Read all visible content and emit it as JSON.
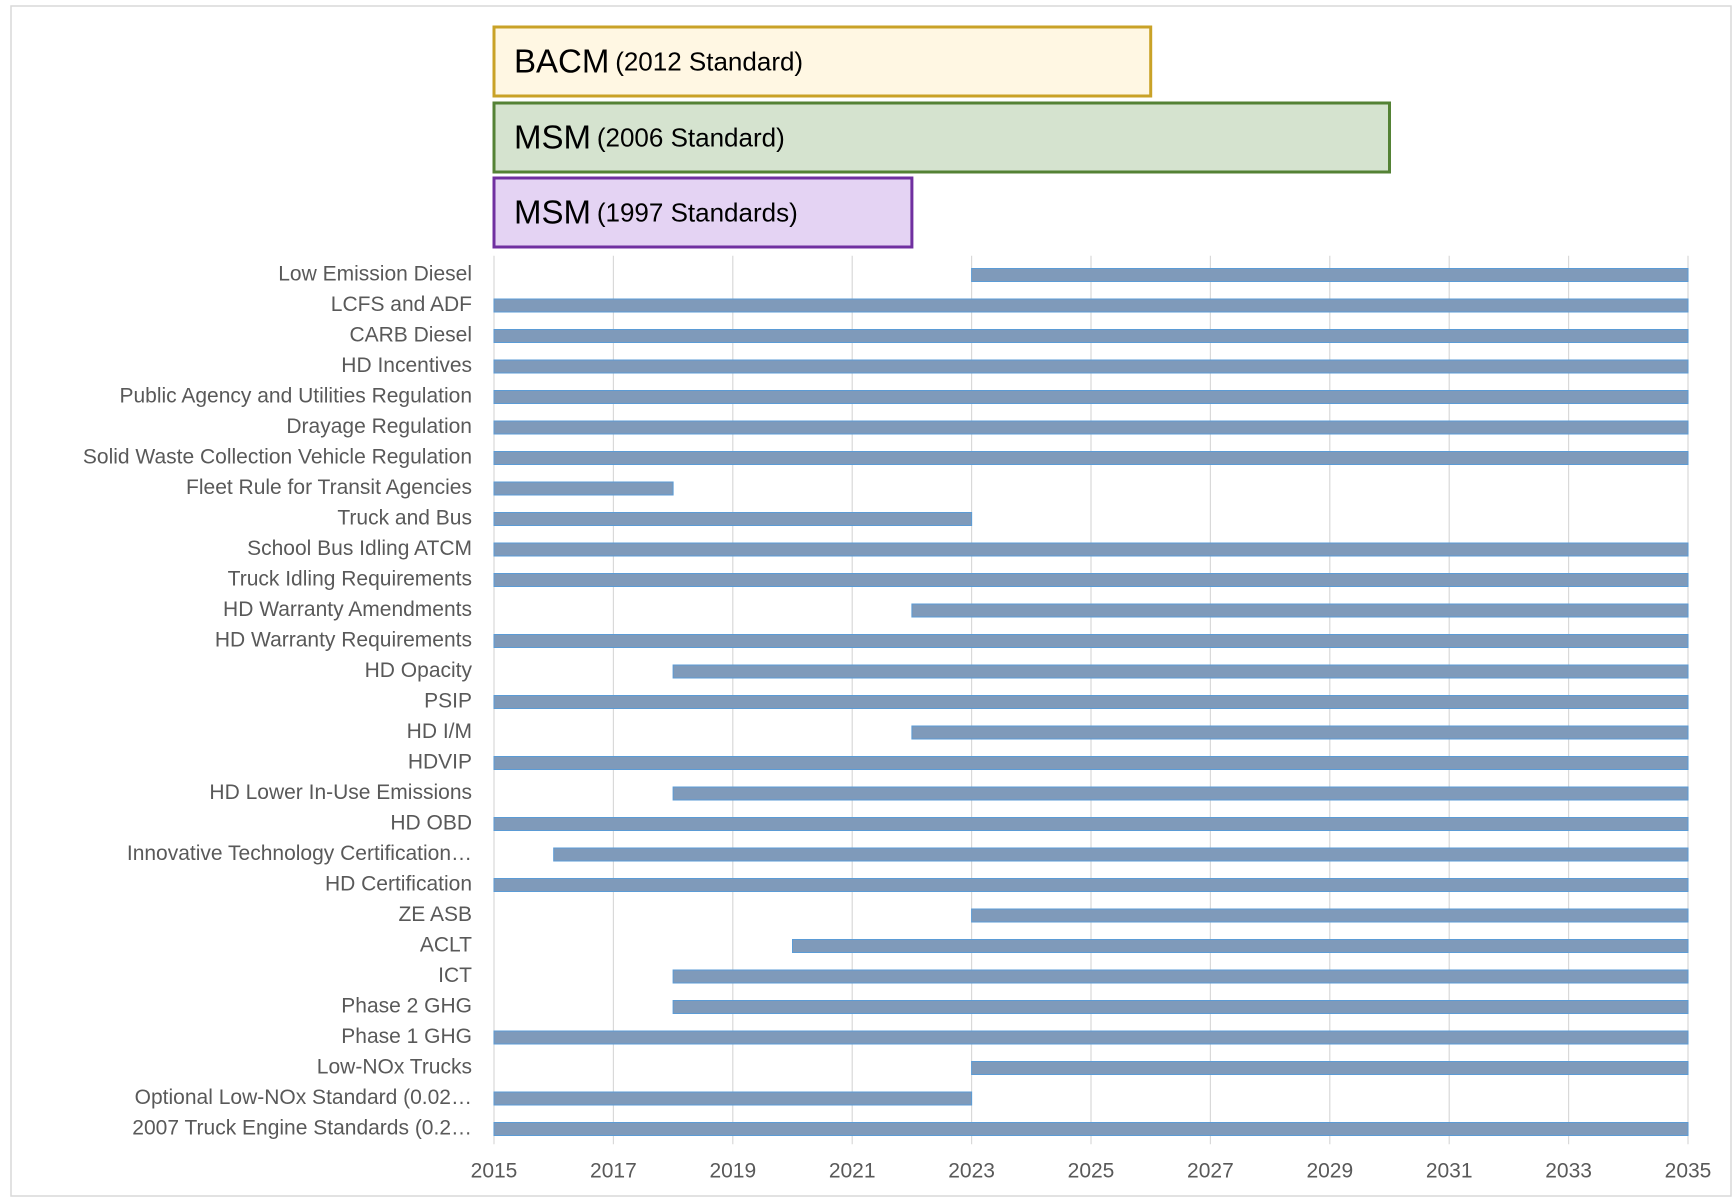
{
  "chart_data": {
    "type": "gantt",
    "ranges": [
      {
        "name": "BACM",
        "note": "(2012 Standard)",
        "start": 2015,
        "end": 2026,
        "color": "#fff7e3",
        "border": "#c9a227"
      },
      {
        "name": "MSM",
        "note": "(2006 Standard)",
        "start": 2015,
        "end": 2030,
        "color": "#d5e3cf",
        "border": "#548235"
      },
      {
        "name": "MSM",
        "note": "(1997 Standards)",
        "start": 2015,
        "end": 2022,
        "color": "#e4d3f3",
        "border": "#7030a0"
      }
    ],
    "categories": [
      "Low Emission Diesel",
      "LCFS and ADF",
      "CARB Diesel",
      "HD Incentives",
      "Public Agency and Utilities Regulation",
      "Drayage Regulation",
      "Solid Waste Collection Vehicle Regulation",
      "Fleet Rule for Transit Agencies",
      "Truck and Bus",
      "School Bus Idling ATCM",
      "Truck Idling Requirements",
      "HD Warranty Amendments",
      "HD Warranty Requirements",
      "HD Opacity",
      "PSIP",
      "HD I/M",
      "HDVIP",
      "HD Lower In-Use Emissions",
      "HD OBD",
      "Innovative Technology Certification…",
      "HD Certification",
      "ZE ASB",
      "ACLT",
      "ICT",
      "Phase 2 GHG",
      "Phase 1 GHG",
      "Low-NOx Trucks",
      "Optional Low-NOx Standard (0.02…",
      "2007 Truck Engine Standards (0.2…"
    ],
    "start": [
      2023,
      2015,
      2015,
      2015,
      2015,
      2015,
      2015,
      2015,
      2015,
      2015,
      2015,
      2022,
      2015,
      2018,
      2015,
      2022,
      2015,
      2018,
      2015,
      2016,
      2015,
      2023,
      2020,
      2018,
      2018,
      2015,
      2023,
      2015,
      2015
    ],
    "end": [
      2035,
      2035,
      2035,
      2035,
      2035,
      2035,
      2035,
      2018,
      2023,
      2035,
      2035,
      2035,
      2035,
      2035,
      2035,
      2035,
      2035,
      2035,
      2035,
      2035,
      2035,
      2035,
      2035,
      2035,
      2035,
      2035,
      2035,
      2023,
      2035
    ],
    "color": "#7f9aba",
    "xlim": [
      2015,
      2035
    ],
    "xticks": [
      2015,
      2017,
      2019,
      2021,
      2023,
      2025,
      2027,
      2029,
      2031,
      2033,
      2035
    ],
    "grid": true
  }
}
